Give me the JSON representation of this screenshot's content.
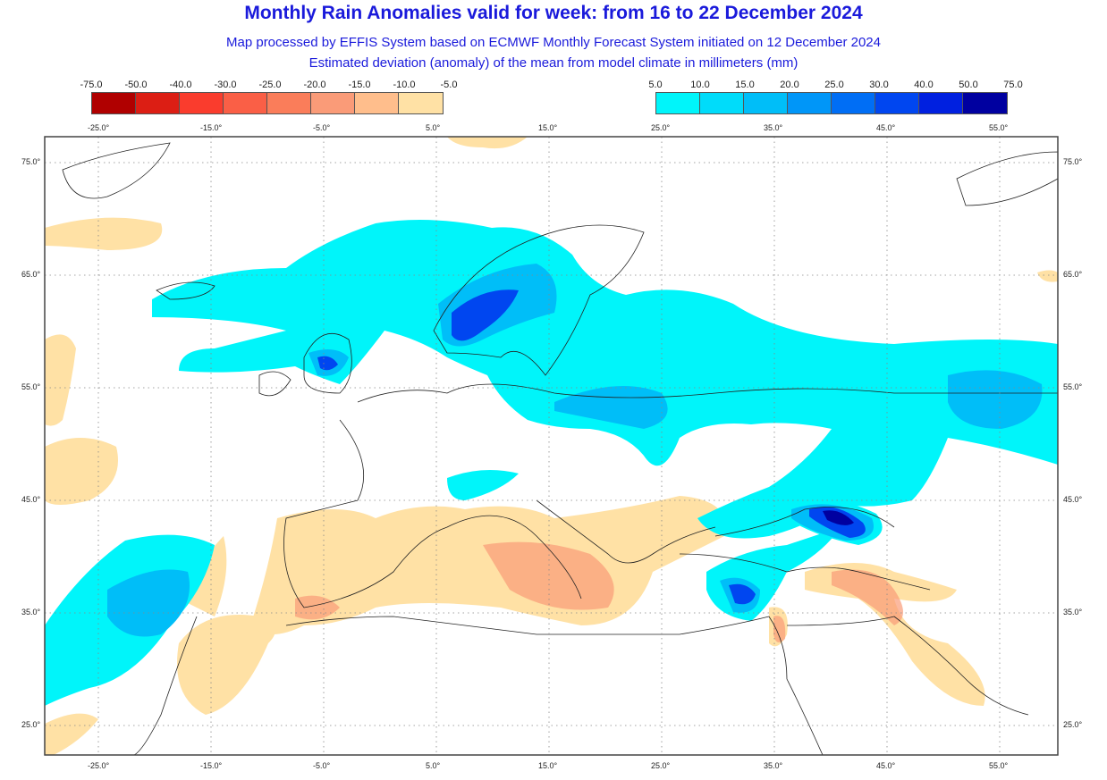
{
  "title": "Monthly Rain Anomalies valid for week: from 16 to 22 December 2024",
  "subtitle1": "Map processed by EFFIS System based on ECMWF Monthly Forecast System initiated on 12 December 2024",
  "subtitle2": "Estimated deviation (anomaly) of the mean from model climate in millimeters (mm)",
  "legend_negative": {
    "labels": [
      "-75.0",
      "-50.0",
      "-40.0",
      "-30.0",
      "-25.0",
      "-20.0",
      "-15.0",
      "-10.0",
      "-5.0"
    ],
    "colors": [
      "#b00000",
      "#dc1e14",
      "#fa3c2d",
      "#fa5f46",
      "#fa7d5a",
      "#fa9b78",
      "#ffbe8c",
      "#ffe1a5"
    ]
  },
  "legend_positive": {
    "labels": [
      "5.0",
      "10.0",
      "15.0",
      "20.0",
      "25.0",
      "30.0",
      "40.0",
      "50.0",
      "75.0"
    ],
    "colors": [
      "#00f5fa",
      "#00dcfa",
      "#00bef8",
      "#0096f8",
      "#006ef5",
      "#0046f0",
      "#0020e0",
      "#0000a0"
    ]
  },
  "lon_ticks": [
    "-25.0°",
    "-15.0°",
    "-5.0°",
    "5.0°",
    "15.0°",
    "25.0°",
    "35.0°",
    "45.0°",
    "55.0°"
  ],
  "lat_ticks": [
    "75.0°",
    "65.0°",
    "55.0°",
    "45.0°",
    "35.0°",
    "25.0°"
  ]
}
